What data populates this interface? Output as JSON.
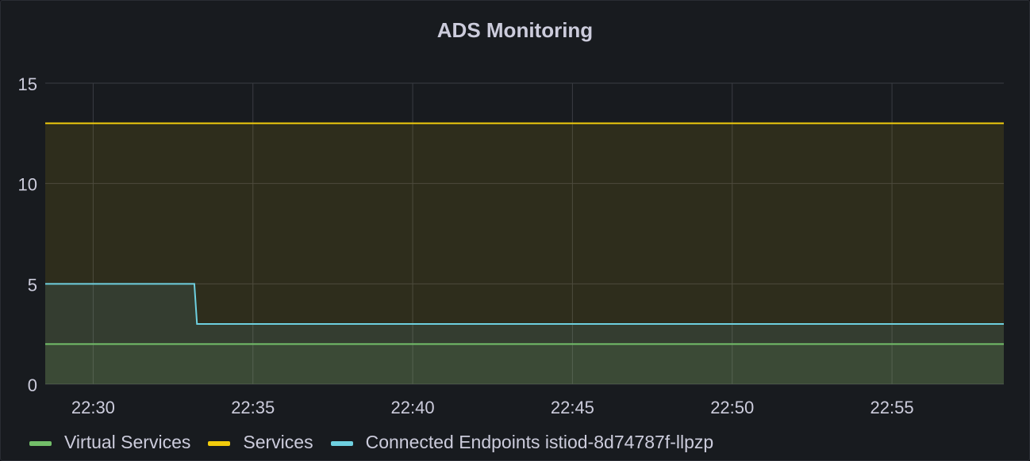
{
  "panel": {
    "title": "ADS Monitoring"
  },
  "chart_data": {
    "type": "area",
    "title": "ADS Monitoring",
    "xlabel": "",
    "ylabel": "",
    "x_ticks": [
      "22:30",
      "22:35",
      "22:40",
      "22:45",
      "22:50",
      "22:55"
    ],
    "x_range": [
      "22:28:30",
      "22:58:30"
    ],
    "y_ticks": [
      0,
      5,
      10,
      15
    ],
    "ylim": [
      0,
      15
    ],
    "grid": true,
    "legend": "bottom-left",
    "series": [
      {
        "name": "Virtual Services",
        "color": "#73bf69",
        "points": [
          [
            "22:28:30",
            2
          ],
          [
            "22:58:30",
            2
          ]
        ]
      },
      {
        "name": "Services",
        "color": "#f2cc0c",
        "points": [
          [
            "22:28:30",
            13
          ],
          [
            "22:58:30",
            13
          ]
        ]
      },
      {
        "name": "Connected Endpoints istiod-8d74787f-llpzp",
        "color": "#6ed0e0",
        "points": [
          [
            "22:28:30",
            5
          ],
          [
            "22:33:10",
            5
          ],
          [
            "22:33:15",
            3
          ],
          [
            "22:58:30",
            3
          ]
        ]
      }
    ]
  },
  "legend": {
    "items": [
      {
        "label": "Virtual Services",
        "color": "#73bf69"
      },
      {
        "label": "Services",
        "color": "#f2cc0c"
      },
      {
        "label": "Connected Endpoints istiod-8d74787f-llpzp",
        "color": "#6ed0e0"
      }
    ]
  }
}
